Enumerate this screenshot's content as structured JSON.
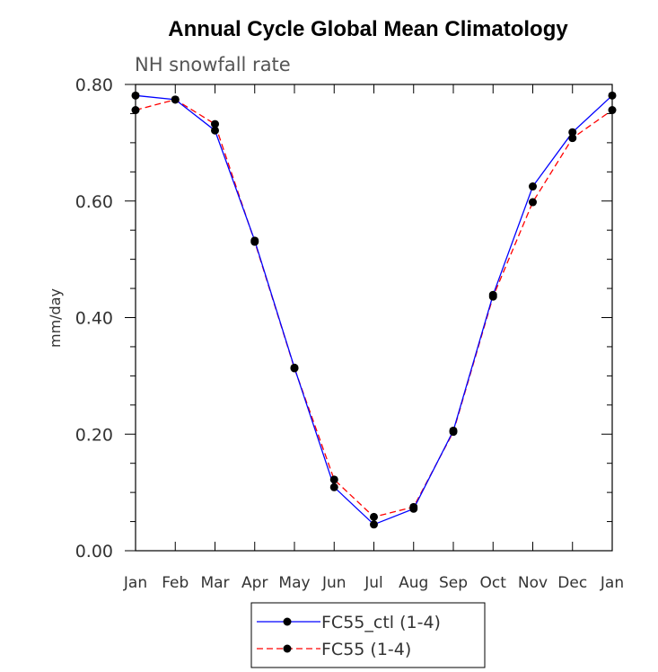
{
  "chart_data": {
    "type": "line",
    "title": "Annual Cycle Global Mean Climatology",
    "subtitle": "NH snowfall rate",
    "xlabel": "",
    "ylabel": "mm/day",
    "categories": [
      "Jan",
      "Feb",
      "Mar",
      "Apr",
      "May",
      "Jun",
      "Jul",
      "Aug",
      "Sep",
      "Oct",
      "Nov",
      "Dec",
      "Jan"
    ],
    "ylim": [
      0,
      0.8
    ],
    "yticks": [
      0,
      0.2,
      0.4,
      0.6,
      0.8
    ],
    "ytick_labels": [
      "0.00",
      "0.20",
      "0.40",
      "0.60",
      "0.80"
    ],
    "grid": false,
    "legend_position": "bottom-center",
    "series": [
      {
        "name": "FC55_ctl (1-4)",
        "color": "#0000ff",
        "line_style": "solid",
        "marker": "filled-circle",
        "values": [
          0.781,
          0.774,
          0.721,
          0.532,
          0.314,
          0.109,
          0.045,
          0.072,
          0.206,
          0.439,
          0.625,
          0.718,
          0.781
        ]
      },
      {
        "name": "FC55 (1-4)",
        "color": "#ff0000",
        "line_style": "dashed",
        "marker": "filled-circle",
        "values": [
          0.756,
          0.774,
          0.732,
          0.53,
          0.313,
          0.122,
          0.058,
          0.075,
          0.204,
          0.436,
          0.598,
          0.708,
          0.756
        ]
      }
    ]
  }
}
